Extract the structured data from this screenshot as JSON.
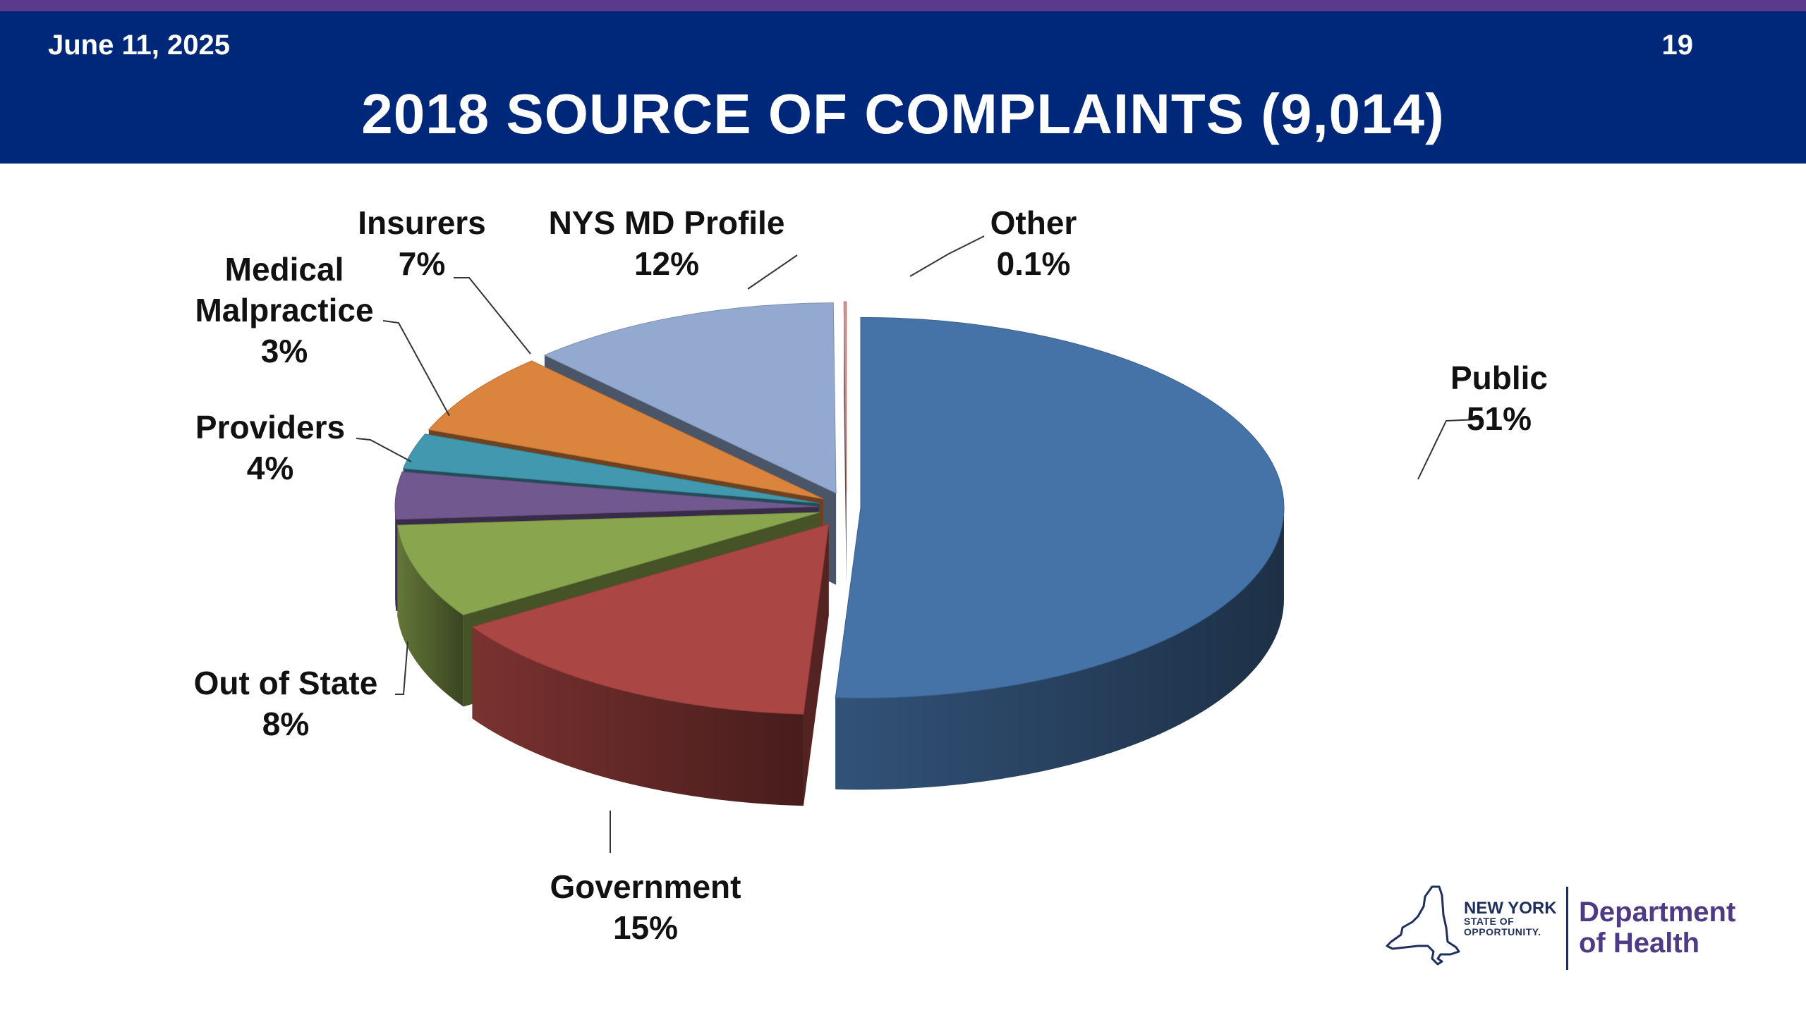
{
  "slide": {
    "date": "June 11, 2025",
    "page_number": "19",
    "title": "2018 SOURCE OF COMPLAINTS (9,014)"
  },
  "colors": {
    "top_strip": "#5b3a8c",
    "header_bg": "#00287a",
    "logo_text": "#1f2f5c",
    "dept_text": "#4f3a86"
  },
  "logo": {
    "icon": "new-york-state-outline-icon",
    "state_line1": "NEW YORK",
    "state_line2": "STATE OF",
    "state_line3": "OPPORTUNITY.",
    "dept_line1": "Department",
    "dept_line2": "of Health"
  },
  "chart_data": {
    "type": "pie",
    "title": "2018 SOURCE OF COMPLAINTS (9,014)",
    "total": 9014,
    "slices": [
      {
        "name": "Public",
        "value": 51,
        "label": "51%",
        "color": "#4572a7"
      },
      {
        "name": "Government",
        "value": 15,
        "label": "15%",
        "color": "#aa4643"
      },
      {
        "name": "Out of State",
        "value": 8,
        "label": "8%",
        "color": "#89a54e"
      },
      {
        "name": "Providers",
        "value": 4,
        "label": "4%",
        "color": "#71588f"
      },
      {
        "name": "Medical Malpractice",
        "value": 3,
        "label": "3%",
        "color": "#4198af"
      },
      {
        "name": "Insurers",
        "value": 7,
        "label": "7%",
        "color": "#db843d"
      },
      {
        "name": "NYS MD Profile",
        "value": 12,
        "label": "12%",
        "color": "#93a9cf"
      },
      {
        "name": "Other",
        "value": 0.1,
        "label": "0.1%",
        "color": "#d19392"
      }
    ],
    "legend": "none",
    "style": "3d-exploded-pie"
  }
}
